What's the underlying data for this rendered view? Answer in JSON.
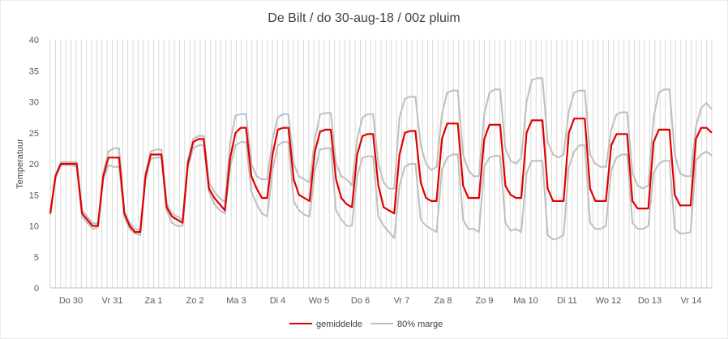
{
  "chart_data": {
    "type": "line",
    "title": "De Bilt / do 30-aug-18 / 00z pluim",
    "ylabel": "Temperatuur",
    "xlabel": "",
    "ylim": [
      0,
      40
    ],
    "yticks": [
      0,
      5,
      10,
      15,
      20,
      25,
      30,
      35,
      40
    ],
    "day_labels": [
      "Do 30",
      "Vr 31",
      "Za 1",
      "Zo 2",
      "Ma 3",
      "Di 4",
      "Wo 5",
      "Do 6",
      "Vr 7",
      "Za 8",
      "Zo 9",
      "Ma 10",
      "Di 11",
      "Wo 12",
      "Do 13",
      "Vr 14"
    ],
    "grid": "vertical",
    "legend_position": "bottom",
    "colors": {
      "mean": "#e00000",
      "band": "#bfbfbf",
      "grid": "#d9d9d9",
      "axis": "#bfbfbf"
    },
    "series": [
      {
        "name": "gemiddelde",
        "values": [
          12,
          18,
          20,
          20,
          20,
          20,
          12,
          11,
          10,
          10,
          18,
          21,
          21,
          21,
          12,
          10,
          9,
          9,
          18,
          21.5,
          21.5,
          21.5,
          13,
          11.5,
          11,
          10.5,
          20,
          23.5,
          24,
          24,
          16,
          14.5,
          13.5,
          12.5,
          21,
          25,
          25.8,
          25.8,
          18,
          16,
          14.5,
          14.5,
          21.5,
          25.5,
          25.8,
          25.8,
          17.5,
          15,
          14.5,
          14,
          22,
          25.2,
          25.5,
          25.5,
          17.5,
          14.5,
          13.5,
          13,
          21.5,
          24.5,
          24.8,
          24.8,
          16.5,
          13,
          12.5,
          12,
          21.5,
          25,
          25.3,
          25.3,
          17,
          14.5,
          14,
          14,
          24,
          26.5,
          26.5,
          26.5,
          16.5,
          14.5,
          14.5,
          14.5,
          24,
          26.3,
          26.3,
          26.3,
          16.5,
          15,
          14.5,
          14.5,
          25,
          27,
          27,
          27,
          16,
          14,
          14,
          14,
          25,
          27.3,
          27.3,
          27.3,
          16,
          14,
          14,
          14,
          23,
          24.8,
          24.8,
          24.8,
          14,
          12.8,
          12.8,
          12.8,
          23.5,
          25.5,
          25.5,
          25.5,
          15,
          13.3,
          13.3,
          13.3,
          24,
          25.8,
          25.8,
          25
        ]
      },
      {
        "name": "80% marge",
        "role": "upper",
        "values": [
          12,
          18.3,
          20.3,
          20.3,
          20.3,
          20.3,
          12.5,
          11.5,
          10.5,
          10.3,
          18.5,
          22,
          22.5,
          22.5,
          12.3,
          10.5,
          9.5,
          9.3,
          18.5,
          22,
          22.3,
          22.3,
          13.5,
          12,
          11.5,
          11,
          20.5,
          24,
          24.5,
          24.5,
          17,
          15.5,
          14.5,
          13.8,
          23.5,
          27.8,
          28,
          28,
          20,
          18,
          17.5,
          17.5,
          24,
          27.5,
          28,
          28,
          20,
          18,
          17.5,
          17,
          24,
          28,
          28.2,
          28.2,
          20,
          18,
          17.5,
          16.5,
          24,
          27.5,
          28,
          28,
          20,
          17,
          16,
          16,
          27.5,
          30.5,
          30.8,
          30.8,
          23,
          20,
          19,
          19.5,
          28,
          31.5,
          31.8,
          31.8,
          21.5,
          19,
          18,
          18,
          28,
          31.5,
          32,
          32,
          22.5,
          20.5,
          20,
          21,
          30,
          33.5,
          33.8,
          33.8,
          23.5,
          21.5,
          21,
          21.5,
          28.5,
          31.5,
          31.8,
          31.8,
          21.5,
          20,
          19.5,
          19.5,
          25.5,
          28,
          28.3,
          28.3,
          18.5,
          16.5,
          16,
          16.5,
          27.5,
          31.5,
          32,
          32,
          21.5,
          18.5,
          18,
          18,
          26,
          29,
          29.8,
          28.8
        ]
      },
      {
        "name": "80% marge",
        "role": "lower",
        "values": [
          11.8,
          17.8,
          19.8,
          19.8,
          19.8,
          19.5,
          11.5,
          10.5,
          9.5,
          9.8,
          17.5,
          19.8,
          19.5,
          19.5,
          11.5,
          9.5,
          8.8,
          8.5,
          17.5,
          20.8,
          21,
          21,
          12.5,
          10.5,
          10,
          10,
          19.5,
          22.5,
          23,
          23,
          15.5,
          13.5,
          12.5,
          12,
          19.5,
          23,
          23.5,
          23.5,
          15.5,
          13.5,
          12,
          11.5,
          19,
          23,
          23.5,
          23.5,
          14,
          12.5,
          11.8,
          11.5,
          19,
          22.3,
          22.5,
          22.5,
          12.5,
          11,
          10,
          10,
          18,
          21,
          21.2,
          21.2,
          11.5,
          10,
          9,
          8,
          16.5,
          19.5,
          20,
          20,
          11,
          10,
          9.5,
          9,
          19,
          21,
          21.5,
          21.5,
          11,
          9.5,
          9.5,
          9,
          19.5,
          21,
          21.3,
          21.3,
          10.5,
          9.2,
          9.5,
          9,
          18.5,
          20.5,
          20.5,
          20.5,
          8.5,
          7.8,
          8,
          8.5,
          19.5,
          22,
          23,
          23,
          10.5,
          9.5,
          9.5,
          10,
          19,
          21,
          21.5,
          21.5,
          10.5,
          9.5,
          9.5,
          10,
          18.5,
          20,
          20.5,
          20.5,
          9.5,
          8.8,
          8.8,
          9,
          20.5,
          21.5,
          22,
          21.3
        ]
      }
    ]
  }
}
